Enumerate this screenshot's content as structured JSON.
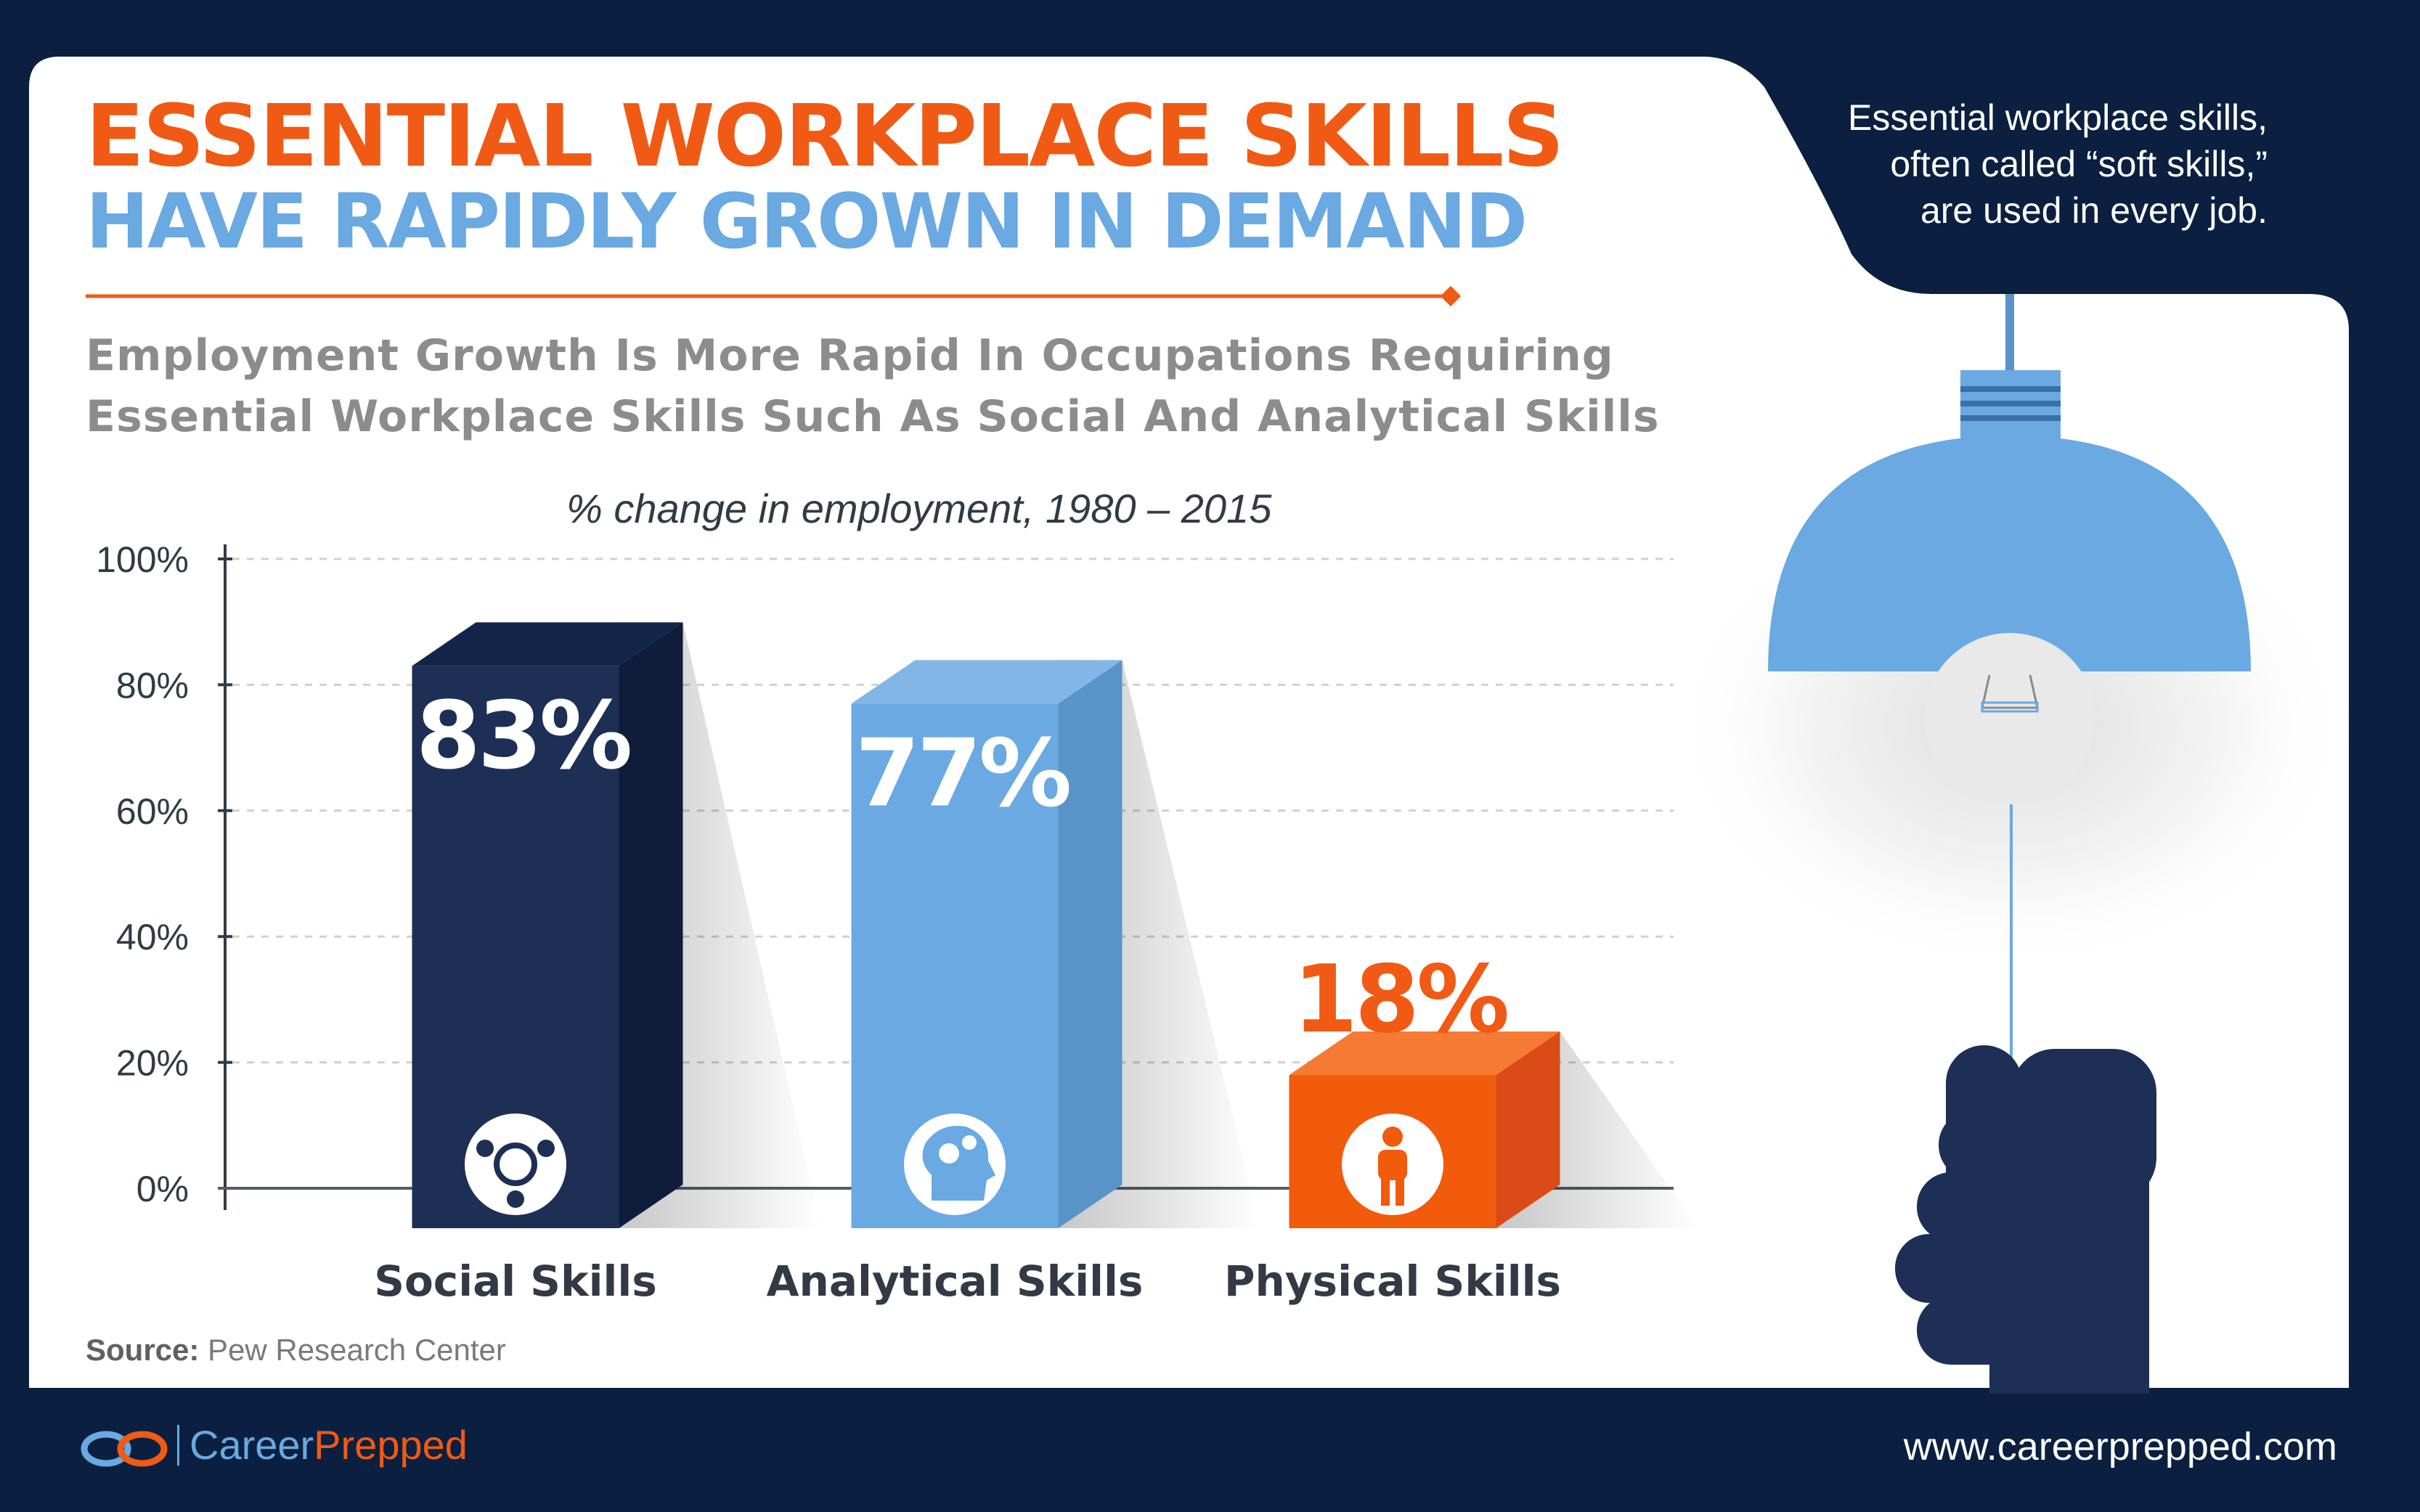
{
  "title": {
    "line1": "ESSENTIAL WORKPLACE SKILLS",
    "line2": "HAVE RAPIDLY GROWN IN DEMAND"
  },
  "subtitle": {
    "line1": "Employment Growth Is More Rapid In Occupations Requiring",
    "line2": "Essential Workplace Skills Such As Social And Analytical Skills"
  },
  "corner_note": {
    "line1": "Essential workplace skills,",
    "line2": "often called “soft skills,”",
    "line3": "are used in every job."
  },
  "chart_data": {
    "type": "bar",
    "title": "% change in employment, 1980 – 2015",
    "xlabel": "",
    "ylabel": "",
    "ylim": [
      0,
      100
    ],
    "yticks": [
      "100%",
      "80%",
      "60%",
      "40%",
      "20%",
      "0%"
    ],
    "grid": true,
    "categories": [
      "Social Skills",
      "Analytical Skills",
      "Physical Skills"
    ],
    "values": [
      83,
      77,
      18
    ],
    "value_labels": [
      "83%",
      "77%",
      "18%"
    ],
    "icons": [
      "people-network-icon",
      "brain-gears-icon",
      "person-icon"
    ],
    "colors": {
      "front": [
        "#1d2f55",
        "#6aa9e2",
        "#f25a0c"
      ],
      "side": [
        "#0f1c3a",
        "#5a93c8",
        "#db4b18"
      ],
      "top": [
        "#14254a",
        "#82b6e6",
        "#f57a34"
      ]
    },
    "label_colors": [
      "#ffffff",
      "#ffffff",
      "#f05a14"
    ]
  },
  "source": {
    "label": "Source:",
    "text": "Pew Research Center"
  },
  "footer": {
    "brand_part1": "Career",
    "brand_part2": "Prepped",
    "website": "www.careerprepped.com"
  },
  "colors": {
    "navy": "#0b2040",
    "orange": "#f05a14",
    "blue": "#6aa9e2",
    "white": "#ffffff"
  }
}
